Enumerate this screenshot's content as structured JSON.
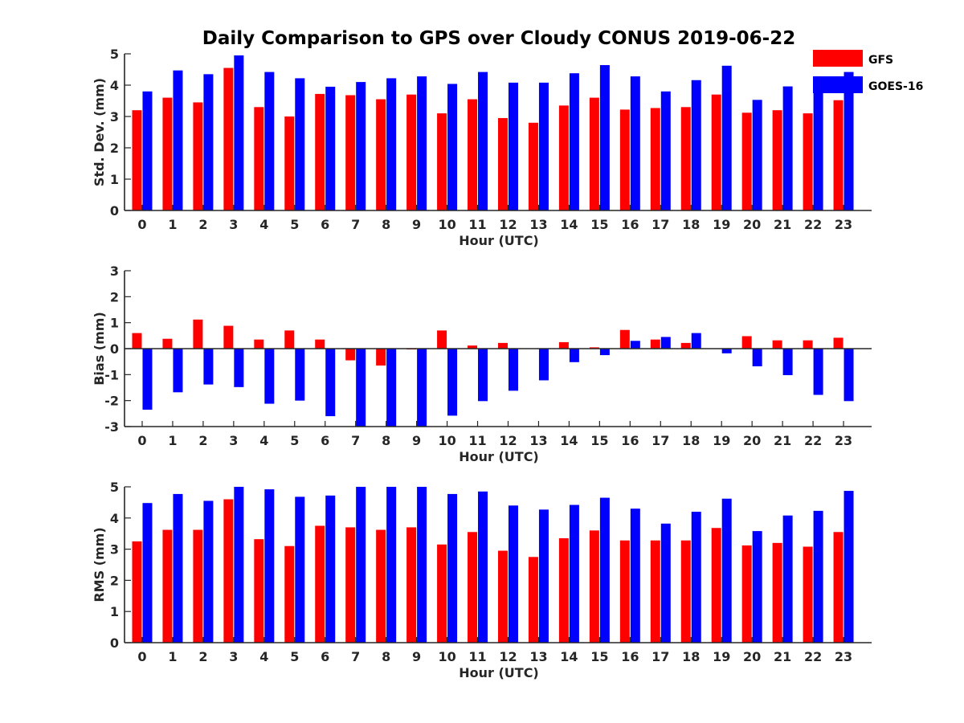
{
  "title": "Daily Comparison to GPS over Cloudy CONUS 2019-06-22",
  "legend": [
    {
      "name": "GFS",
      "color": "#ff0000"
    },
    {
      "name": "GOES-16",
      "color": "#0000ff"
    }
  ],
  "chart_data": [
    {
      "type": "bar",
      "xlabel": "Hour (UTC)",
      "ylabel": "Std. Dev. (mm)",
      "ylim": [
        0,
        5
      ],
      "yticks": [
        0,
        1,
        2,
        3,
        4,
        5
      ],
      "grid": false,
      "legend_position": "top-right",
      "categories": [
        "0",
        "1",
        "2",
        "3",
        "4",
        "5",
        "6",
        "7",
        "8",
        "9",
        "10",
        "11",
        "12",
        "13",
        "14",
        "15",
        "16",
        "17",
        "18",
        "19",
        "20",
        "21",
        "22",
        "23"
      ],
      "series": [
        {
          "name": "GFS",
          "color": "#ff0000",
          "values": [
            3.2,
            3.6,
            3.45,
            4.55,
            3.3,
            3.0,
            3.72,
            3.68,
            3.55,
            3.7,
            3.1,
            3.55,
            2.95,
            2.8,
            3.35,
            3.6,
            3.22,
            3.27,
            3.3,
            3.7,
            3.12,
            3.2,
            3.1,
            3.52
          ]
        },
        {
          "name": "GOES-16",
          "color": "#0000ff",
          "values": [
            3.8,
            4.47,
            4.35,
            4.95,
            4.42,
            4.22,
            3.95,
            4.1,
            4.22,
            4.28,
            4.04,
            4.42,
            4.08,
            4.08,
            4.38,
            4.64,
            4.28,
            3.8,
            4.16,
            4.62,
            3.53,
            3.96,
            3.87,
            4.42
          ]
        }
      ]
    },
    {
      "type": "bar",
      "xlabel": "Hour (UTC)",
      "ylabel": "Bias (mm)",
      "ylim": [
        -3,
        3
      ],
      "yticks": [
        -3,
        -2,
        -1,
        0,
        1,
        2,
        3
      ],
      "grid": false,
      "zero_line": true,
      "categories": [
        "0",
        "1",
        "2",
        "3",
        "4",
        "5",
        "6",
        "7",
        "8",
        "9",
        "10",
        "11",
        "12",
        "13",
        "14",
        "15",
        "16",
        "17",
        "18",
        "19",
        "20",
        "21",
        "22",
        "23"
      ],
      "series": [
        {
          "name": "GFS",
          "color": "#ff0000",
          "values": [
            0.6,
            0.38,
            1.12,
            0.88,
            0.35,
            0.7,
            0.35,
            -0.45,
            -0.65,
            -0.03,
            0.7,
            0.12,
            0.22,
            0.0,
            0.25,
            0.05,
            0.72,
            0.35,
            0.22,
            0.0,
            0.48,
            0.32,
            0.32,
            0.42
          ]
        },
        {
          "name": "GOES-16",
          "color": "#0000ff",
          "values": [
            -2.35,
            -1.68,
            -1.38,
            -1.48,
            -2.12,
            -2.0,
            -2.6,
            -3.0,
            -3.0,
            -3.0,
            -2.58,
            -2.02,
            -1.62,
            -1.22,
            -0.52,
            -0.25,
            0.3,
            0.45,
            0.6,
            -0.18,
            -0.68,
            -1.02,
            -1.78,
            -2.02
          ]
        }
      ]
    },
    {
      "type": "bar",
      "xlabel": "Hour (UTC)",
      "ylabel": "RMS (mm)",
      "ylim": [
        0,
        5
      ],
      "yticks": [
        0,
        1,
        2,
        3,
        4,
        5
      ],
      "grid": false,
      "categories": [
        "0",
        "1",
        "2",
        "3",
        "4",
        "5",
        "6",
        "7",
        "8",
        "9",
        "10",
        "11",
        "12",
        "13",
        "14",
        "15",
        "16",
        "17",
        "18",
        "19",
        "20",
        "21",
        "22",
        "23"
      ],
      "series": [
        {
          "name": "GFS",
          "color": "#ff0000",
          "values": [
            3.25,
            3.62,
            3.62,
            4.6,
            3.32,
            3.1,
            3.75,
            3.7,
            3.62,
            3.7,
            3.15,
            3.55,
            2.95,
            2.75,
            3.35,
            3.6,
            3.28,
            3.28,
            3.28,
            3.68,
            3.12,
            3.2,
            3.08,
            3.55
          ]
        },
        {
          "name": "GOES-16",
          "color": "#0000ff",
          "values": [
            4.48,
            4.77,
            4.55,
            5.0,
            4.92,
            4.68,
            4.72,
            5.0,
            5.0,
            5.0,
            4.77,
            4.85,
            4.4,
            4.27,
            4.42,
            4.65,
            4.3,
            3.82,
            4.2,
            4.62,
            3.58,
            4.08,
            4.23,
            4.87
          ]
        }
      ]
    }
  ]
}
